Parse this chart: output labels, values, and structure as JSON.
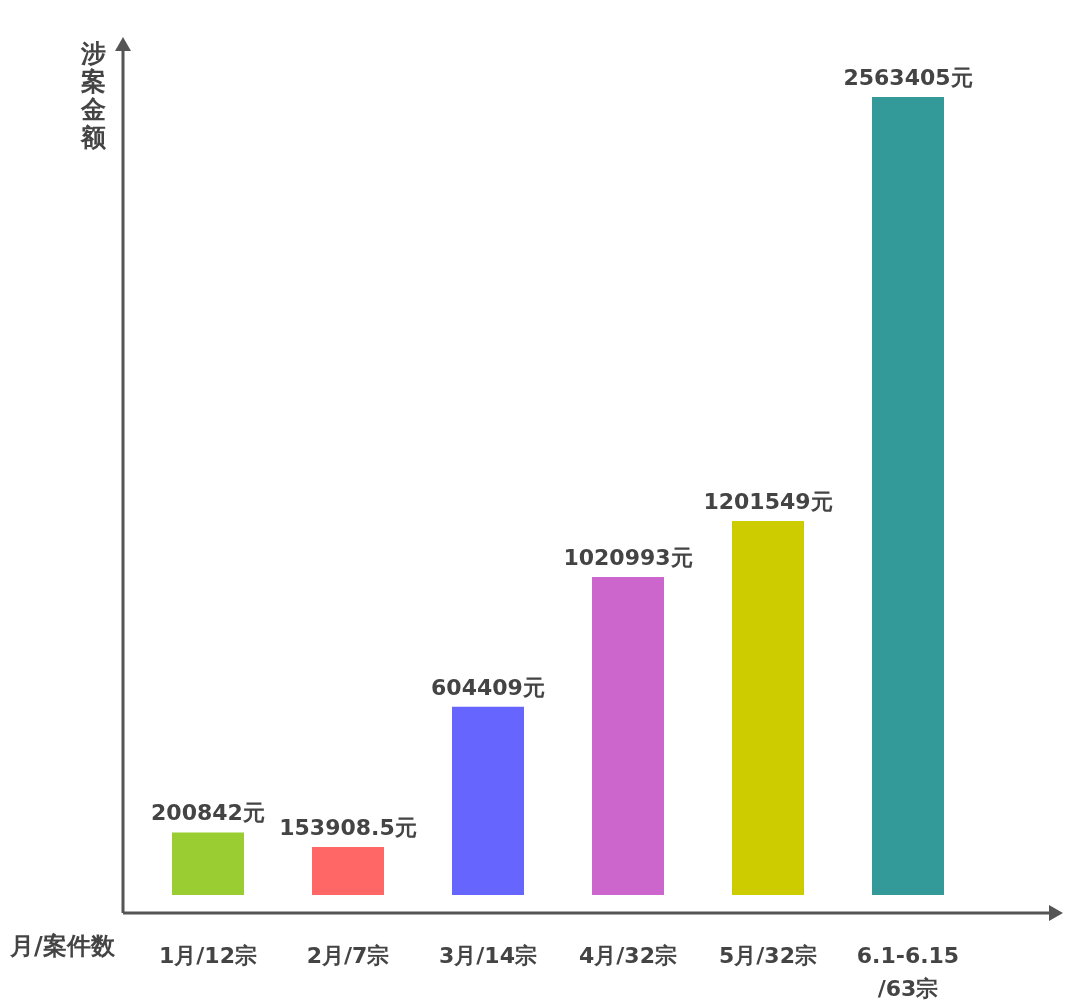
{
  "chart_data": {
    "type": "bar",
    "xlabel": "月/案件数",
    "ylabel": "涉案金额",
    "categories": [
      "1月/12宗",
      "2月/7宗",
      "3月/14宗",
      "4月/32宗",
      "5月/32宗",
      "6.1-6.15\n/63宗"
    ],
    "values": [
      200842,
      153908.5,
      604409,
      1020993,
      1201549,
      2563405
    ],
    "colors": [
      "#9acd32",
      "#ff6666",
      "#6666ff",
      "#cc66cc",
      "#cccc00",
      "#339999"
    ],
    "value_labels": [
      "200842元",
      "153908.5元",
      "604409元",
      "1020993元",
      "1201549元",
      "2563405元"
    ],
    "tick_labels": "x"
  }
}
